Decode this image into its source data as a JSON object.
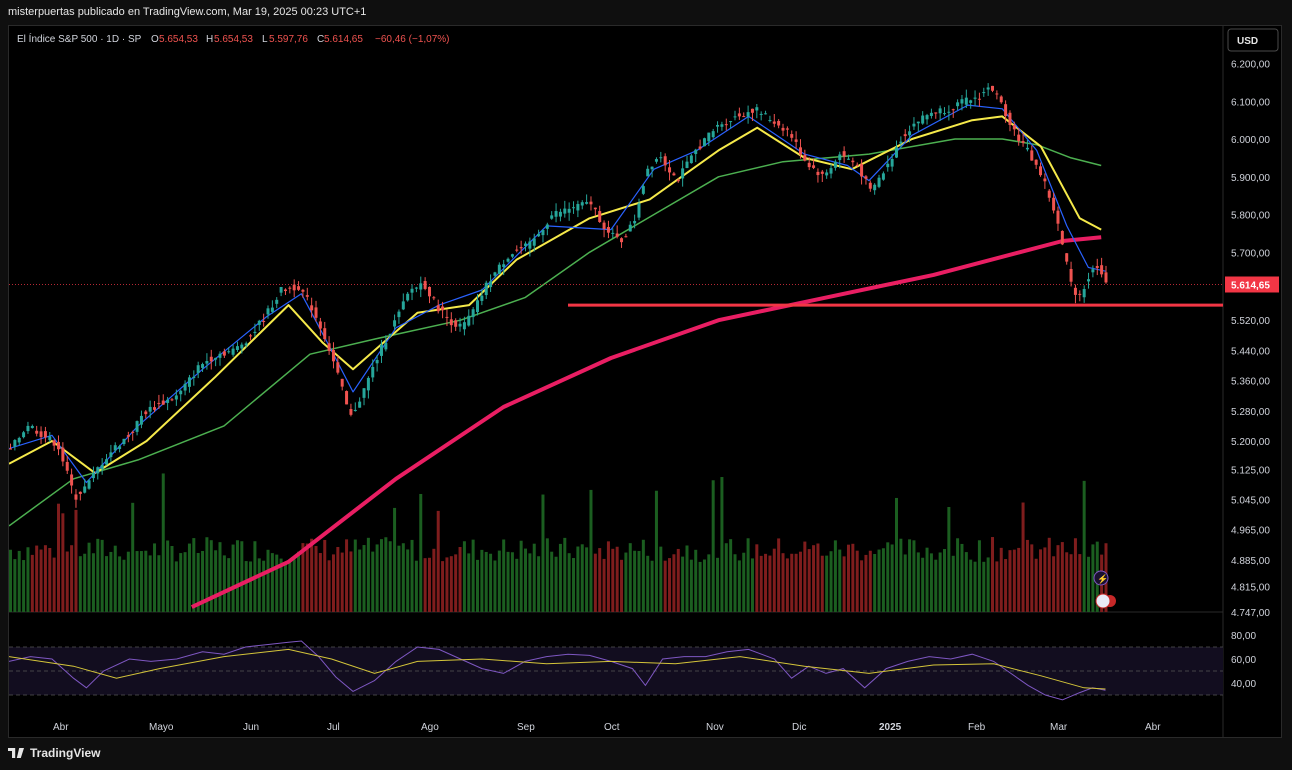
{
  "header": {
    "publish_line": "misterpuertas publicado en TradingView.com, Mar 19, 2025 00:23 UTC+1"
  },
  "footer": {
    "brand": "TradingView"
  },
  "legend": {
    "symbol": "El Índice S&P 500 · 1D · SP",
    "o_label": "O",
    "o_value": "5.654,53",
    "h_label": "H",
    "h_value": "5.654,53",
    "l_label": "L",
    "l_value": "5.597,76",
    "c_label": "C",
    "c_value": "5.614,65",
    "change": "−60,46 (−1,07%)"
  },
  "currency_button": "USD",
  "colors": {
    "up": "#26a69a",
    "down": "#ef5350",
    "vol_up": "#1b5e20",
    "vol_down": "#7f1d1d",
    "ema_fast": "#2962ff",
    "ema_mid": "#f5e94a",
    "ema_slow": "#4caf50",
    "ma_long": "#e91e63",
    "support": "#f23645",
    "rsi": "#7e57c2",
    "rsi_ma": "#d4c53a",
    "price_tag": "#f23645"
  },
  "chart_data": {
    "type": "candlestick",
    "last_price": "5.614,65",
    "y_ticks": [
      "6.200,00",
      "6.100,00",
      "6.000,00",
      "5.900,00",
      "5.800,00",
      "5.700,00",
      "5.614,65",
      "5.520,00",
      "5.440,00",
      "5.360,00",
      "5.280,00",
      "5.200,00",
      "5.125,00",
      "5.045,00",
      "4.965,00",
      "4.885,00",
      "4.815,00",
      "4.747,00"
    ],
    "x_ticks": [
      "Abr",
      "Mayo",
      "Jun",
      "Jul",
      "Ago",
      "Sep",
      "Oct",
      "Nov",
      "Dic",
      "2025",
      "Feb",
      "Mar",
      "Abr"
    ],
    "price_path": [
      [
        0,
        5175
      ],
      [
        8,
        5245
      ],
      [
        14,
        5220
      ],
      [
        22,
        5190
      ],
      [
        30,
        5050
      ],
      [
        36,
        5085
      ],
      [
        42,
        5140
      ],
      [
        48,
        5180
      ],
      [
        56,
        5220
      ],
      [
        62,
        5275
      ],
      [
        70,
        5300
      ],
      [
        78,
        5320
      ],
      [
        88,
        5400
      ],
      [
        96,
        5430
      ],
      [
        104,
        5440
      ],
      [
        112,
        5480
      ],
      [
        120,
        5545
      ],
      [
        126,
        5600
      ],
      [
        134,
        5610
      ],
      [
        140,
        5555
      ],
      [
        146,
        5480
      ],
      [
        152,
        5380
      ],
      [
        158,
        5260
      ],
      [
        164,
        5330
      ],
      [
        172,
        5440
      ],
      [
        180,
        5530
      ],
      [
        186,
        5600
      ],
      [
        192,
        5620
      ],
      [
        198,
        5560
      ],
      [
        204,
        5520
      ],
      [
        210,
        5500
      ],
      [
        216,
        5550
      ],
      [
        222,
        5620
      ],
      [
        232,
        5695
      ],
      [
        242,
        5720
      ],
      [
        252,
        5800
      ],
      [
        262,
        5820
      ],
      [
        270,
        5830
      ],
      [
        278,
        5750
      ],
      [
        284,
        5730
      ],
      [
        290,
        5780
      ],
      [
        296,
        5920
      ],
      [
        302,
        5960
      ],
      [
        310,
        5890
      ],
      [
        320,
        5980
      ],
      [
        330,
        6040
      ],
      [
        338,
        6060
      ],
      [
        346,
        6080
      ],
      [
        354,
        6050
      ],
      [
        362,
        6020
      ],
      [
        370,
        5940
      ],
      [
        378,
        5900
      ],
      [
        386,
        5960
      ],
      [
        394,
        5930
      ],
      [
        400,
        5860
      ],
      [
        408,
        5930
      ],
      [
        414,
        6000
      ],
      [
        420,
        6040
      ],
      [
        428,
        6070
      ],
      [
        436,
        6080
      ],
      [
        444,
        6100
      ],
      [
        450,
        6110
      ],
      [
        456,
        6140
      ],
      [
        462,
        6080
      ],
      [
        468,
        6010
      ],
      [
        474,
        5960
      ],
      [
        480,
        5900
      ],
      [
        486,
        5800
      ],
      [
        490,
        5700
      ],
      [
        494,
        5600
      ],
      [
        498,
        5590
      ],
      [
        502,
        5640
      ],
      [
        506,
        5670
      ],
      [
        510,
        5615
      ]
    ],
    "ema_fast_path": [
      [
        0,
        5180
      ],
      [
        20,
        5215
      ],
      [
        36,
        5090
      ],
      [
        60,
        5240
      ],
      [
        90,
        5390
      ],
      [
        120,
        5530
      ],
      [
        136,
        5590
      ],
      [
        150,
        5440
      ],
      [
        160,
        5330
      ],
      [
        180,
        5500
      ],
      [
        200,
        5560
      ],
      [
        220,
        5600
      ],
      [
        250,
        5770
      ],
      [
        280,
        5760
      ],
      [
        300,
        5920
      ],
      [
        320,
        5970
      ],
      [
        344,
        6060
      ],
      [
        370,
        5960
      ],
      [
        390,
        5930
      ],
      [
        400,
        5890
      ],
      [
        420,
        6010
      ],
      [
        446,
        6090
      ],
      [
        462,
        6080
      ],
      [
        478,
        5970
      ],
      [
        492,
        5770
      ],
      [
        502,
        5660
      ],
      [
        510,
        5650
      ]
    ],
    "ema_mid_path": [
      [
        0,
        5140
      ],
      [
        20,
        5200
      ],
      [
        40,
        5115
      ],
      [
        64,
        5200
      ],
      [
        96,
        5370
      ],
      [
        130,
        5560
      ],
      [
        146,
        5460
      ],
      [
        160,
        5390
      ],
      [
        190,
        5540
      ],
      [
        214,
        5560
      ],
      [
        236,
        5680
      ],
      [
        270,
        5790
      ],
      [
        298,
        5840
      ],
      [
        330,
        5970
      ],
      [
        348,
        6030
      ],
      [
        370,
        5950
      ],
      [
        392,
        5920
      ],
      [
        420,
        6000
      ],
      [
        448,
        6050
      ],
      [
        462,
        6060
      ],
      [
        480,
        5980
      ],
      [
        498,
        5790
      ],
      [
        508,
        5760
      ]
    ],
    "ema_slow_path": [
      [
        0,
        4975
      ],
      [
        30,
        5100
      ],
      [
        60,
        5150
      ],
      [
        100,
        5240
      ],
      [
        140,
        5430
      ],
      [
        170,
        5470
      ],
      [
        210,
        5520
      ],
      [
        240,
        5580
      ],
      [
        270,
        5700
      ],
      [
        300,
        5800
      ],
      [
        330,
        5900
      ],
      [
        360,
        5940
      ],
      [
        400,
        5960
      ],
      [
        440,
        6000
      ],
      [
        462,
        6000
      ],
      [
        478,
        5985
      ],
      [
        494,
        5950
      ],
      [
        508,
        5930
      ]
    ],
    "ma_long_path": [
      [
        85,
        4760
      ],
      [
        130,
        4880
      ],
      [
        180,
        5100
      ],
      [
        230,
        5290
      ],
      [
        280,
        5420
      ],
      [
        330,
        5520
      ],
      [
        380,
        5580
      ],
      [
        430,
        5640
      ],
      [
        470,
        5700
      ],
      [
        490,
        5730
      ],
      [
        508,
        5740
      ]
    ],
    "support_level": 5560,
    "support_start_x": 260,
    "price_min": 4747,
    "price_max": 6220,
    "x_max": 540,
    "rsi": {
      "ticks": [
        "80,00",
        "60,00",
        "40,00"
      ],
      "levels": [
        70,
        50,
        30
      ],
      "path": [
        [
          0,
          58
        ],
        [
          10,
          62
        ],
        [
          20,
          60
        ],
        [
          30,
          44
        ],
        [
          36,
          36
        ],
        [
          44,
          50
        ],
        [
          56,
          60
        ],
        [
          66,
          58
        ],
        [
          78,
          60
        ],
        [
          90,
          66
        ],
        [
          100,
          64
        ],
        [
          110,
          70
        ],
        [
          120,
          72
        ],
        [
          130,
          74
        ],
        [
          136,
          75
        ],
        [
          144,
          62
        ],
        [
          152,
          45
        ],
        [
          160,
          33
        ],
        [
          170,
          42
        ],
        [
          180,
          58
        ],
        [
          190,
          70
        ],
        [
          200,
          68
        ],
        [
          210,
          60
        ],
        [
          220,
          52
        ],
        [
          230,
          48
        ],
        [
          240,
          58
        ],
        [
          250,
          62
        ],
        [
          260,
          64
        ],
        [
          270,
          63
        ],
        [
          280,
          58
        ],
        [
          290,
          52
        ],
        [
          296,
          38
        ],
        [
          304,
          60
        ],
        [
          314,
          62
        ],
        [
          324,
          62
        ],
        [
          334,
          66
        ],
        [
          344,
          68
        ],
        [
          356,
          60
        ],
        [
          364,
          44
        ],
        [
          372,
          54
        ],
        [
          380,
          48
        ],
        [
          388,
          52
        ],
        [
          398,
          36
        ],
        [
          408,
          52
        ],
        [
          418,
          58
        ],
        [
          428,
          62
        ],
        [
          438,
          60
        ],
        [
          448,
          64
        ],
        [
          458,
          58
        ],
        [
          466,
          48
        ],
        [
          474,
          38
        ],
        [
          482,
          30
        ],
        [
          490,
          26
        ],
        [
          498,
          32
        ],
        [
          504,
          36
        ],
        [
          510,
          34
        ]
      ],
      "ma_path": [
        [
          0,
          62
        ],
        [
          30,
          54
        ],
        [
          50,
          44
        ],
        [
          70,
          52
        ],
        [
          100,
          62
        ],
        [
          130,
          68
        ],
        [
          150,
          60
        ],
        [
          170,
          48
        ],
        [
          190,
          58
        ],
        [
          220,
          60
        ],
        [
          250,
          56
        ],
        [
          280,
          58
        ],
        [
          310,
          56
        ],
        [
          340,
          62
        ],
        [
          370,
          54
        ],
        [
          400,
          48
        ],
        [
          430,
          55
        ],
        [
          458,
          56
        ],
        [
          480,
          46
        ],
        [
          500,
          36
        ],
        [
          510,
          35
        ]
      ]
    },
    "volume_note": "volume bars shown at bottom of price panel"
  }
}
